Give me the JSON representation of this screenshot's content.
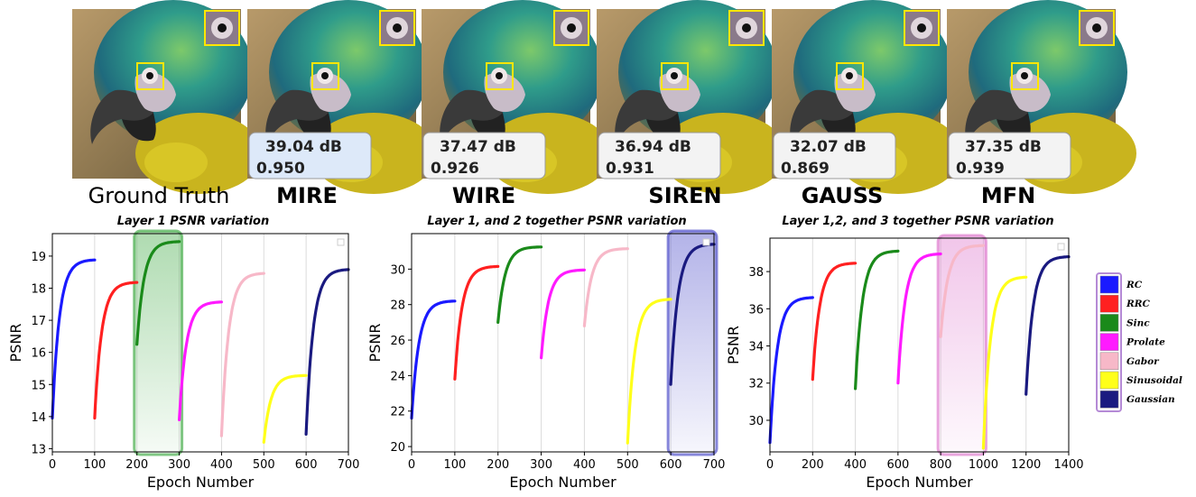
{
  "models": [
    {
      "label": "Ground Truth",
      "psnr": "",
      "ssim": "",
      "best": false,
      "ground_truth": true
    },
    {
      "label": "MIRE",
      "psnr": "39.04 dB",
      "ssim": "0.950",
      "best": true,
      "ground_truth": false
    },
    {
      "label": "WIRE",
      "psnr": "37.47 dB",
      "ssim": "0.926",
      "best": false,
      "ground_truth": false
    },
    {
      "label": "SIREN",
      "psnr": "36.94 dB",
      "ssim": "0.931",
      "best": false,
      "ground_truth": false
    },
    {
      "label": "GAUSS",
      "psnr": "32.07 dB",
      "ssim": "0.869",
      "best": false,
      "ground_truth": false
    },
    {
      "label": "MFN",
      "psnr": "37.35 dB",
      "ssim": "0.939",
      "best": false,
      "ground_truth": false
    }
  ],
  "legend": [
    {
      "name": "RC",
      "color": "#1a1aff"
    },
    {
      "name": "RRC",
      "color": "#ff2020"
    },
    {
      "name": "Sinc",
      "color": "#1a8a1a"
    },
    {
      "name": "Prolate",
      "color": "#ff1aff"
    },
    {
      "name": "Gabor",
      "color": "#f7b8c8"
    },
    {
      "name": "Sinusoidal",
      "color": "#ffff1a"
    },
    {
      "name": "Gaussian",
      "color": "#1a1a80"
    }
  ],
  "colors": {
    "highlight_box": "#fff59a",
    "best_metric_bg": "#dde9f9",
    "metric_bg": "#f3f3f3"
  },
  "chart_data": [
    {
      "type": "line",
      "title": "Layer 1 PSNR variation",
      "xlabel": "Epoch Number",
      "ylabel": "PSNR",
      "xlim": [
        0,
        700
      ],
      "ylim": [
        12.9,
        19.7
      ],
      "xticks": [
        0,
        100,
        200,
        300,
        400,
        500,
        600,
        700
      ],
      "yticks": [
        13,
        14,
        15,
        16,
        17,
        18,
        19
      ],
      "grid": "vertical",
      "highlight": {
        "x": [
          200,
          300
        ],
        "color": "#4caf50"
      },
      "series": [
        {
          "name": "RC",
          "x_start": 0,
          "start": 13.95,
          "end": 18.88
        },
        {
          "name": "RRC",
          "x_start": 100,
          "start": 13.95,
          "end": 18.18
        },
        {
          "name": "Sinc",
          "x_start": 200,
          "start": 16.25,
          "end": 19.45
        },
        {
          "name": "Prolate",
          "x_start": 300,
          "start": 13.9,
          "end": 17.57
        },
        {
          "name": "Gabor",
          "x_start": 400,
          "start": 13.4,
          "end": 18.46
        },
        {
          "name": "Sinusoidal",
          "x_start": 500,
          "start": 13.2,
          "end": 15.28
        },
        {
          "name": "Gaussian",
          "x_start": 600,
          "start": 13.45,
          "end": 18.58
        }
      ]
    },
    {
      "type": "line",
      "title": "Layer 1, and 2  together PSNR variation",
      "xlabel": "Epoch Number",
      "ylabel": "PSNR",
      "xlim": [
        0,
        700
      ],
      "ylim": [
        19.7,
        32.0
      ],
      "xticks": [
        0,
        100,
        200,
        300,
        400,
        500,
        600,
        700
      ],
      "yticks": [
        20,
        22,
        24,
        26,
        28,
        30
      ],
      "grid": "vertical",
      "highlight": {
        "x": [
          600,
          700
        ],
        "color": "#5555cc"
      },
      "series": [
        {
          "name": "RC",
          "x_start": 0,
          "start": 21.6,
          "end": 28.2
        },
        {
          "name": "RRC",
          "x_start": 100,
          "start": 23.8,
          "end": 30.15
        },
        {
          "name": "Sinc",
          "x_start": 200,
          "start": 27.0,
          "end": 31.25
        },
        {
          "name": "Prolate",
          "x_start": 300,
          "start": 25.0,
          "end": 29.95
        },
        {
          "name": "Gabor",
          "x_start": 400,
          "start": 26.8,
          "end": 31.15
        },
        {
          "name": "Sinusoidal",
          "x_start": 500,
          "start": 20.2,
          "end": 28.3
        },
        {
          "name": "Gaussian",
          "x_start": 600,
          "start": 23.5,
          "end": 31.4
        }
      ]
    },
    {
      "type": "line",
      "title": "Layer 1,2, and 3 together PSNR variation",
      "xlabel": "Epoch Number",
      "ylabel": "PSNR",
      "xlim": [
        0,
        1400
      ],
      "ylim": [
        28.3,
        39.8
      ],
      "xticks": [
        0,
        200,
        400,
        600,
        800,
        1000,
        1200,
        1400
      ],
      "yticks": [
        30,
        32,
        34,
        36,
        38
      ],
      "grid": "vertical",
      "highlight": {
        "x": [
          800,
          1000
        ],
        "color": "#e080d0"
      },
      "series": [
        {
          "name": "RC",
          "x_start": 0,
          "start": 28.8,
          "end": 36.6
        },
        {
          "name": "RRC",
          "x_start": 200,
          "start": 32.2,
          "end": 38.45
        },
        {
          "name": "Sinc",
          "x_start": 400,
          "start": 31.7,
          "end": 39.1
        },
        {
          "name": "Prolate",
          "x_start": 600,
          "start": 32.0,
          "end": 38.95
        },
        {
          "name": "Gabor",
          "x_start": 800,
          "start": 34.5,
          "end": 39.4
        },
        {
          "name": "Sinusoidal",
          "x_start": 1000,
          "start": 28.5,
          "end": 37.7
        },
        {
          "name": "Gaussian",
          "x_start": 1200,
          "start": 31.4,
          "end": 38.8
        }
      ]
    }
  ]
}
